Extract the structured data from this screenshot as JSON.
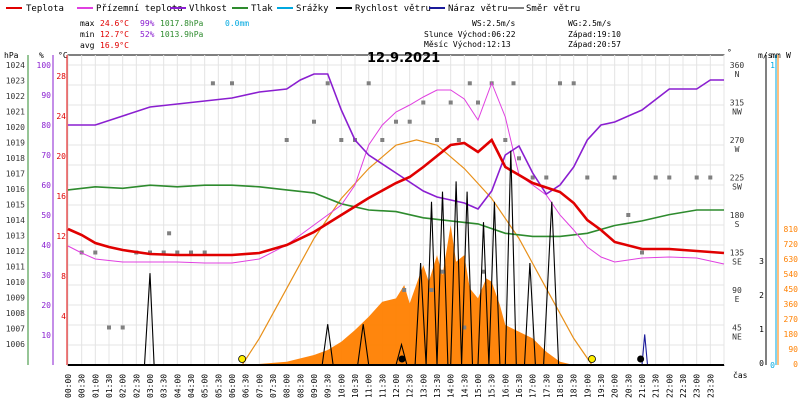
{
  "chart_data": {
    "type": "line",
    "title": "12.9.2021",
    "xlabel": "čas",
    "colors": {
      "temperature": "#e00000",
      "apparent_temperature": "#e040e0",
      "humidity": "#8a1ed0",
      "pressure": "#2e8b2e",
      "rain": "#00a8e0",
      "wind_speed": "#000000",
      "wind_gust": "#1a1a9a",
      "wind_direction": "#808080",
      "solar": "#ff8000",
      "sun_curve": "#e8901a"
    },
    "legend": [
      {
        "key": "temperature",
        "label": "Teplota"
      },
      {
        "key": "apparent_temperature",
        "label": "Přízemní teplota"
      },
      {
        "key": "humidity",
        "label": "Vlhkost"
      },
      {
        "key": "pressure",
        "label": "Tlak"
      },
      {
        "key": "rain",
        "label": "Srážky"
      },
      {
        "key": "wind_speed",
        "label": "Rychlost větru"
      },
      {
        "key": "wind_gust",
        "label": "Náraz větru"
      },
      {
        "key": "wind_direction",
        "label": "Směr větru"
      }
    ],
    "stats": {
      "max": {
        "label": "max",
        "temp": "24.6°C",
        "hum": "99%",
        "press": "1017.8hPa",
        "rain": "0.0mm"
      },
      "min": {
        "label": "min",
        "temp": "12.7°C",
        "hum": "52%",
        "press": "1013.9hPa"
      },
      "avg": {
        "label": "avg",
        "temp": "16.9°C"
      }
    },
    "info": {
      "ws": "WS:2.5m/s",
      "wg": "WG:2.5m/s",
      "sun_rise": "Slunce Východ:06:22",
      "sun_set": "Západ:19:10",
      "moon_rise": "Měsíc Východ:12:13",
      "moon_set": "Západ:20:57"
    },
    "axes": {
      "pressure": {
        "label": "hPa",
        "ticks": [
          "1024",
          "1023",
          "1022",
          "1021",
          "1020",
          "1019",
          "1018",
          "1017",
          "1016",
          "1015",
          "1014",
          "1013",
          "1012",
          "1011",
          "1010",
          "1009",
          "1008",
          "1007",
          "1006"
        ]
      },
      "humidity": {
        "label": "%",
        "ticks": [
          "100",
          "90",
          "80",
          "70",
          "60",
          "50",
          "40",
          "30",
          "20",
          "10"
        ]
      },
      "temperature": {
        "label": "°C",
        "ticks": [
          "28",
          "24",
          "20",
          "16",
          "12",
          "8",
          "4"
        ]
      },
      "direction": {
        "label": "°",
        "ticks": [
          {
            "deg": "360",
            "dir": "N"
          },
          {
            "deg": "315",
            "dir": "NW"
          },
          {
            "deg": "270",
            "dir": "W"
          },
          {
            "deg": "225",
            "dir": "SW"
          },
          {
            "deg": "180",
            "dir": "S"
          },
          {
            "deg": "135",
            "dir": "SE"
          },
          {
            "deg": "90",
            "dir": "E"
          },
          {
            "deg": "45",
            "dir": "NE"
          }
        ]
      },
      "wind": {
        "label": "m/s",
        "ticks": [
          "3",
          "2",
          "1",
          "0"
        ]
      },
      "rain": {
        "label": "mm",
        "ticks": [
          "1",
          "0"
        ]
      },
      "solar": {
        "label": "W",
        "ticks": [
          "810",
          "720",
          "630",
          "540",
          "450",
          "360",
          "270",
          "180",
          "90",
          "0"
        ]
      },
      "time": [
        "00:00",
        "00:30",
        "01:00",
        "01:30",
        "02:00",
        "02:30",
        "03:00",
        "03:30",
        "04:00",
        "04:30",
        "05:00",
        "05:30",
        "06:00",
        "06:30",
        "07:00",
        "07:30",
        "08:00",
        "08:30",
        "09:00",
        "09:30",
        "10:00",
        "10:30",
        "11:00",
        "11:30",
        "12:00",
        "12:30",
        "13:00",
        "13:30",
        "14:00",
        "14:30",
        "15:00",
        "15:30",
        "16:00",
        "16:30",
        "17:00",
        "17:30",
        "18:00",
        "18:30",
        "19:00",
        "19:30",
        "20:00",
        "20:30",
        "21:00",
        "21:30",
        "22:00",
        "22:30",
        "23:00",
        "23:30"
      ]
    },
    "series": {
      "temperature": [
        [
          0,
          15.6
        ],
        [
          0.5,
          15.0
        ],
        [
          1,
          14.2
        ],
        [
          1.5,
          13.8
        ],
        [
          2,
          13.5
        ],
        [
          3,
          13.1
        ],
        [
          4,
          13.0
        ],
        [
          5,
          13.0
        ],
        [
          6,
          13.0
        ],
        [
          7,
          13.2
        ],
        [
          8,
          14.0
        ],
        [
          9,
          15.3
        ],
        [
          10,
          17.0
        ],
        [
          11,
          18.7
        ],
        [
          12,
          20.2
        ],
        [
          12.5,
          20.8
        ],
        [
          13,
          21.8
        ],
        [
          14,
          24.0
        ],
        [
          14.5,
          24.2
        ],
        [
          15,
          23.3
        ],
        [
          15.5,
          24.5
        ],
        [
          16,
          21.8
        ],
        [
          16.5,
          21.0
        ],
        [
          17,
          20.2
        ],
        [
          18,
          19.3
        ],
        [
          18.5,
          18.2
        ],
        [
          19,
          16.5
        ],
        [
          19.5,
          15.5
        ],
        [
          20,
          14.3
        ],
        [
          21,
          13.6
        ],
        [
          22,
          13.6
        ],
        [
          23,
          13.4
        ],
        [
          24,
          13.2
        ]
      ],
      "apparent_temperature": [
        [
          0,
          13.9
        ],
        [
          0.5,
          13.2
        ],
        [
          1,
          12.6
        ],
        [
          2,
          12.3
        ],
        [
          3,
          12.3
        ],
        [
          4,
          12.3
        ],
        [
          5,
          12.2
        ],
        [
          6,
          12.2
        ],
        [
          7,
          12.6
        ],
        [
          8,
          14.0
        ],
        [
          9,
          16.0
        ],
        [
          10,
          18.0
        ],
        [
          10.5,
          20.0
        ],
        [
          11,
          24.0
        ],
        [
          11.5,
          26.0
        ],
        [
          12,
          27.3
        ],
        [
          12.5,
          28.0
        ],
        [
          13,
          28.8
        ],
        [
          13.5,
          29.5
        ],
        [
          14,
          29.5
        ],
        [
          14.5,
          28.6
        ],
        [
          15,
          26.5
        ],
        [
          15.5,
          30.2
        ],
        [
          16,
          26.8
        ],
        [
          16.5,
          21.0
        ],
        [
          17,
          20.0
        ],
        [
          17.5,
          19.0
        ],
        [
          18,
          17.0
        ],
        [
          18.5,
          15.5
        ],
        [
          19,
          13.8
        ],
        [
          19.5,
          12.8
        ],
        [
          20,
          12.3
        ],
        [
          20.5,
          12.5
        ],
        [
          21,
          12.7
        ],
        [
          22,
          12.8
        ],
        [
          23,
          12.7
        ],
        [
          24,
          12.1
        ]
      ],
      "humidity": [
        [
          0,
          80
        ],
        [
          1,
          80
        ],
        [
          2,
          83
        ],
        [
          3,
          86
        ],
        [
          4,
          87
        ],
        [
          5,
          88
        ],
        [
          6,
          89
        ],
        [
          7,
          91
        ],
        [
          8,
          92
        ],
        [
          8.5,
          95
        ],
        [
          9,
          97
        ],
        [
          9.5,
          97
        ],
        [
          10,
          85
        ],
        [
          10.5,
          75
        ],
        [
          11,
          70
        ],
        [
          12,
          64
        ],
        [
          13,
          58
        ],
        [
          13.5,
          56
        ],
        [
          14,
          55
        ],
        [
          14.5,
          54
        ],
        [
          15,
          52
        ],
        [
          15.5,
          58
        ],
        [
          16,
          70
        ],
        [
          16.5,
          73
        ],
        [
          17,
          64
        ],
        [
          17.5,
          57
        ],
        [
          18,
          60
        ],
        [
          18.5,
          66
        ],
        [
          19,
          75
        ],
        [
          19.5,
          80
        ],
        [
          20,
          81
        ],
        [
          21,
          85
        ],
        [
          22,
          92
        ],
        [
          23,
          92
        ],
        [
          23.5,
          95
        ],
        [
          24,
          95
        ]
      ],
      "pressure": [
        [
          0,
          1017.3
        ],
        [
          1,
          1017.5
        ],
        [
          2,
          1017.4
        ],
        [
          3,
          1017.6
        ],
        [
          4,
          1017.5
        ],
        [
          5,
          1017.6
        ],
        [
          6,
          1017.6
        ],
        [
          7,
          1017.5
        ],
        [
          8,
          1017.3
        ],
        [
          9,
          1017.1
        ],
        [
          10,
          1016.4
        ],
        [
          11,
          1016.0
        ],
        [
          12,
          1015.9
        ],
        [
          13,
          1015.5
        ],
        [
          14,
          1015.3
        ],
        [
          15,
          1015.1
        ],
        [
          16,
          1014.5
        ],
        [
          17,
          1014.3
        ],
        [
          18,
          1014.3
        ],
        [
          19,
          1014.5
        ],
        [
          20,
          1015.0
        ],
        [
          21,
          1015.3
        ],
        [
          22,
          1015.7
        ],
        [
          23,
          1016.0
        ],
        [
          24,
          1016.0
        ]
      ],
      "wind_speed": [
        [
          0,
          0
        ],
        [
          2.8,
          0
        ],
        [
          3.0,
          0.9
        ],
        [
          3.15,
          0
        ],
        [
          9.3,
          0
        ],
        [
          9.5,
          0.4
        ],
        [
          9.7,
          0
        ],
        [
          10.6,
          0
        ],
        [
          10.8,
          0.4
        ],
        [
          11,
          0
        ],
        [
          12,
          0
        ],
        [
          12.2,
          0.2
        ],
        [
          12.4,
          0
        ],
        [
          12.7,
          0
        ],
        [
          12.9,
          1.0
        ],
        [
          13.1,
          0
        ],
        [
          13.3,
          1.6
        ],
        [
          13.5,
          0
        ],
        [
          13.7,
          1.7
        ],
        [
          13.9,
          0
        ],
        [
          14,
          0
        ],
        [
          14.2,
          1.8
        ],
        [
          14.4,
          0
        ],
        [
          14.6,
          1.7
        ],
        [
          14.8,
          0
        ],
        [
          15,
          0
        ],
        [
          15.2,
          1.4
        ],
        [
          15.4,
          0
        ],
        [
          15.6,
          1.6
        ],
        [
          15.8,
          0
        ],
        [
          16,
          0
        ],
        [
          16.2,
          2.1
        ],
        [
          16.4,
          0
        ],
        [
          16.7,
          0
        ],
        [
          16.9,
          1.0
        ],
        [
          17.1,
          0
        ],
        [
          17.4,
          0
        ],
        [
          17.7,
          1.6
        ],
        [
          17.95,
          0
        ],
        [
          24,
          0
        ]
      ],
      "wind_gust": [
        [
          0,
          0
        ],
        [
          21.0,
          0
        ],
        [
          21.1,
          0.3
        ],
        [
          21.2,
          0
        ],
        [
          24,
          0
        ]
      ],
      "wind_direction": [
        [
          0.5,
          135
        ],
        [
          1,
          135
        ],
        [
          1.5,
          45
        ],
        [
          2,
          45
        ],
        [
          2.5,
          135
        ],
        [
          3,
          135
        ],
        [
          3.5,
          135
        ],
        [
          3.7,
          158
        ],
        [
          4,
          135
        ],
        [
          4.5,
          135
        ],
        [
          5,
          135
        ],
        [
          5.3,
          338
        ],
        [
          6,
          338
        ],
        [
          8,
          270
        ],
        [
          9,
          292
        ],
        [
          9.5,
          338
        ],
        [
          10,
          270
        ],
        [
          10.5,
          270
        ],
        [
          11,
          338
        ],
        [
          11.5,
          270
        ],
        [
          12,
          292
        ],
        [
          12.3,
          90
        ],
        [
          12.5,
          292
        ],
        [
          13,
          315
        ],
        [
          13.3,
          90
        ],
        [
          13.5,
          270
        ],
        [
          13.7,
          112
        ],
        [
          14,
          315
        ],
        [
          14.3,
          270
        ],
        [
          14.5,
          45
        ],
        [
          14.7,
          338
        ],
        [
          15,
          315
        ],
        [
          15.2,
          112
        ],
        [
          15.5,
          338
        ],
        [
          16,
          270
        ],
        [
          16.3,
          338
        ],
        [
          16.5,
          248
        ],
        [
          17,
          225
        ],
        [
          17.5,
          225
        ],
        [
          18,
          338
        ],
        [
          18.5,
          338
        ],
        [
          19,
          225
        ],
        [
          20,
          225
        ],
        [
          20.5,
          180
        ],
        [
          21,
          135
        ],
        [
          21.5,
          225
        ],
        [
          22,
          225
        ],
        [
          23,
          225
        ],
        [
          23.5,
          225
        ]
      ],
      "solar": [
        [
          0,
          0
        ],
        [
          6.5,
          0
        ],
        [
          8,
          10
        ],
        [
          9,
          30
        ],
        [
          9.5,
          45
        ],
        [
          10,
          70
        ],
        [
          10.5,
          105
        ],
        [
          11,
          145
        ],
        [
          11.5,
          190
        ],
        [
          12,
          200
        ],
        [
          12.3,
          240
        ],
        [
          12.5,
          185
        ],
        [
          12.8,
          255
        ],
        [
          13,
          300
        ],
        [
          13.2,
          250
        ],
        [
          13.5,
          330
        ],
        [
          13.7,
          270
        ],
        [
          14,
          420
        ],
        [
          14.2,
          310
        ],
        [
          14.5,
          330
        ],
        [
          14.7,
          230
        ],
        [
          15,
          200
        ],
        [
          15.3,
          260
        ],
        [
          15.5,
          250
        ],
        [
          15.8,
          180
        ],
        [
          16,
          120
        ],
        [
          16.5,
          100
        ],
        [
          17,
          80
        ],
        [
          17.5,
          40
        ],
        [
          18,
          10
        ],
        [
          18.5,
          0
        ],
        [
          24,
          0
        ]
      ],
      "sun_curve": [
        [
          6.37,
          0
        ],
        [
          7,
          80
        ],
        [
          8,
          230
        ],
        [
          9,
          380
        ],
        [
          10,
          500
        ],
        [
          11,
          590
        ],
        [
          12,
          660
        ],
        [
          12.75,
          676
        ],
        [
          13.5,
          660
        ],
        [
          14.5,
          590
        ],
        [
          15.5,
          500
        ],
        [
          16.5,
          380
        ],
        [
          17.5,
          230
        ],
        [
          18.5,
          80
        ],
        [
          19.17,
          0
        ]
      ]
    },
    "markers": {
      "sunrise": {
        "time": 6.37
      },
      "sunset": {
        "time": 19.17
      },
      "moonrise": {
        "time": 12.22
      },
      "moonset": {
        "time": 20.95
      }
    }
  }
}
